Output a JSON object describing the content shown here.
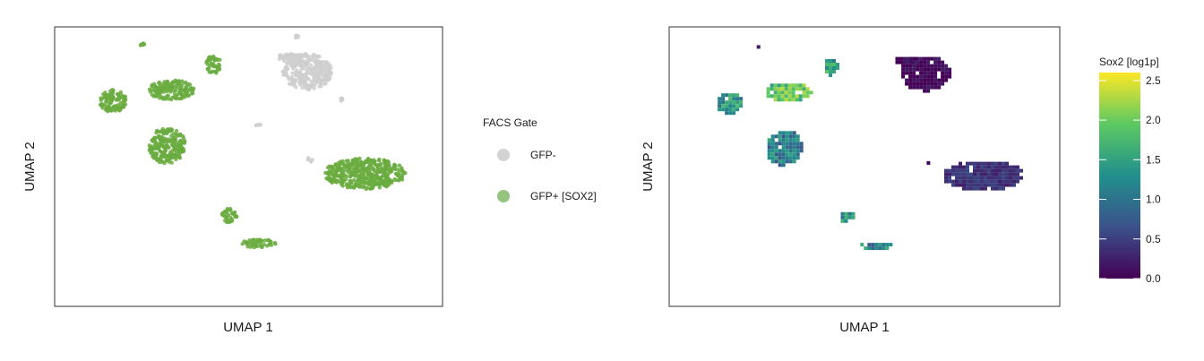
{
  "chart_data": [
    {
      "type": "scatter",
      "xlabel": "UMAP 1",
      "ylabel": "UMAP 2",
      "legend": {
        "title": "FACS Gate",
        "placement": "right",
        "entries": [
          {
            "label": "GFP-",
            "color": "#d3d3d3"
          },
          {
            "label": "GFP+ [SOX2]",
            "color": "#94c47d"
          }
        ]
      },
      "point_colors": {
        "GFP-": "#cfcfcf",
        "GFP+ [SOX2]": "#6aab3f"
      },
      "clusters": [
        {
          "group": "GFP-",
          "cx": 0.3,
          "cy": 0.68,
          "rx": 0.13,
          "ry": 0.13
        },
        {
          "group": "GFP-",
          "cx": 0.25,
          "cy": 0.93,
          "rx": 0.01,
          "ry": 0.01
        },
        {
          "group": "GFP-",
          "cx": 0.05,
          "cy": 0.3,
          "rx": 0.015,
          "ry": 0.01
        },
        {
          "group": "GFP-",
          "cx": 0.32,
          "cy": 0.05,
          "rx": 0.02,
          "ry": 0.015
        },
        {
          "group": "GFP-",
          "cx": 0.2,
          "cy": 0.78,
          "rx": 0.06,
          "ry": 0.03
        },
        {
          "group": "GFP-",
          "cx": 0.48,
          "cy": 0.48,
          "rx": 0.01,
          "ry": 0.01
        },
        {
          "group": "GFP+ [SOX2]",
          "cx": -0.55,
          "cy": 0.88,
          "rx": 0.02,
          "ry": 0.015
        },
        {
          "group": "GFP+ [SOX2]",
          "cx": -0.18,
          "cy": 0.73,
          "rx": 0.04,
          "ry": 0.065
        },
        {
          "group": "GFP+ [SOX2]",
          "cx": -0.4,
          "cy": 0.55,
          "rx": 0.12,
          "ry": 0.07
        },
        {
          "group": "GFP+ [SOX2]",
          "cx": -0.7,
          "cy": 0.47,
          "rx": 0.07,
          "ry": 0.08
        },
        {
          "group": "GFP+ [SOX2]",
          "cx": -0.42,
          "cy": 0.15,
          "rx": 0.095,
          "ry": 0.13
        },
        {
          "group": "GFP+ [SOX2]",
          "cx": -0.1,
          "cy": -0.35,
          "rx": 0.04,
          "ry": 0.05
        },
        {
          "group": "GFP+ [SOX2]",
          "cx": 0.05,
          "cy": -0.55,
          "rx": 0.09,
          "ry": 0.03
        },
        {
          "group": "GFP+ [SOX2]",
          "cx": 0.6,
          "cy": -0.05,
          "rx": 0.21,
          "ry": 0.11
        }
      ]
    },
    {
      "type": "heatmap",
      "xlabel": "UMAP 1",
      "ylabel": "UMAP 2",
      "colorbar": {
        "title": "Sox2 [log1p]",
        "placement": "right",
        "range": [
          0,
          2.6
        ],
        "ticks": [
          "0.0",
          "0.5",
          "1.0",
          "1.5",
          "2.0",
          "2.5"
        ],
        "colormap": [
          "#440154",
          "#3b528b",
          "#21908d",
          "#5dc962",
          "#fde725"
        ]
      },
      "clusters": [
        {
          "cx": 0.3,
          "cy": 0.68,
          "rx": 0.13,
          "ry": 0.13,
          "value": 0.05
        },
        {
          "cx": 0.25,
          "cy": 0.93,
          "rx": 0.01,
          "ry": 0.01,
          "value": 0.1
        },
        {
          "cx": 0.05,
          "cy": 0.3,
          "rx": 0.015,
          "ry": 0.01,
          "value": 0.0
        },
        {
          "cx": 0.32,
          "cy": 0.05,
          "rx": 0.02,
          "ry": 0.015,
          "value": 0.1
        },
        {
          "cx": 0.2,
          "cy": 0.78,
          "rx": 0.06,
          "ry": 0.03,
          "value": 0.1
        },
        {
          "cx": -0.55,
          "cy": 0.88,
          "rx": 0.02,
          "ry": 0.015,
          "value": 0.3
        },
        {
          "cx": -0.18,
          "cy": 0.73,
          "rx": 0.04,
          "ry": 0.065,
          "value": 1.5
        },
        {
          "cx": -0.4,
          "cy": 0.55,
          "rx": 0.12,
          "ry": 0.07,
          "value": 1.9
        },
        {
          "cx": -0.7,
          "cy": 0.47,
          "rx": 0.07,
          "ry": 0.08,
          "value": 1.4
        },
        {
          "cx": -0.42,
          "cy": 0.15,
          "rx": 0.095,
          "ry": 0.13,
          "value": 1.1
        },
        {
          "cx": -0.1,
          "cy": -0.35,
          "rx": 0.04,
          "ry": 0.05,
          "value": 1.3
        },
        {
          "cx": 0.05,
          "cy": -0.55,
          "rx": 0.09,
          "ry": 0.03,
          "value": 1.2
        },
        {
          "cx": 0.6,
          "cy": -0.05,
          "rx": 0.21,
          "ry": 0.11,
          "value": 0.4
        }
      ]
    }
  ]
}
